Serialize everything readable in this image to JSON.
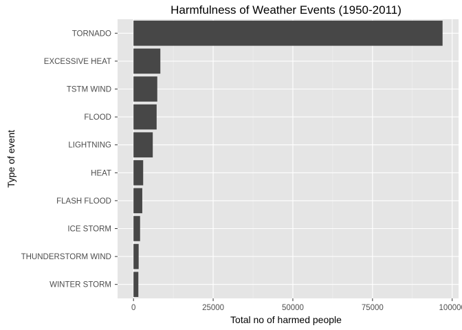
{
  "colors": {
    "panel": "#e5e5e5",
    "grid_major": "#ffffff",
    "grid_minor": "#f2f2f2",
    "bar": "#474747",
    "tick": "#333333"
  },
  "chart_data": {
    "type": "bar",
    "orientation": "horizontal",
    "title": "Harmfulness of Weather Events (1950-2011)",
    "xlabel": "Total no of harmed people",
    "ylabel": "Type of event",
    "grid": true,
    "xlim": [
      -5000,
      102000
    ],
    "xticks": [
      0,
      25000,
      50000,
      75000,
      100000
    ],
    "xtick_labels": [
      "0",
      "25000",
      "50000",
      "75000",
      "100000"
    ],
    "categories": [
      "TORNADO",
      "EXCESSIVE HEAT",
      "TSTM WIND",
      "FLOOD",
      "LIGHTNING",
      "HEAT",
      "FLASH FLOOD",
      "ICE STORM",
      "THUNDERSTORM WIND",
      "WINTER STORM"
    ],
    "values": [
      96979,
      8428,
      7461,
      7259,
      6046,
      3037,
      2755,
      2064,
      1621,
      1527
    ]
  }
}
